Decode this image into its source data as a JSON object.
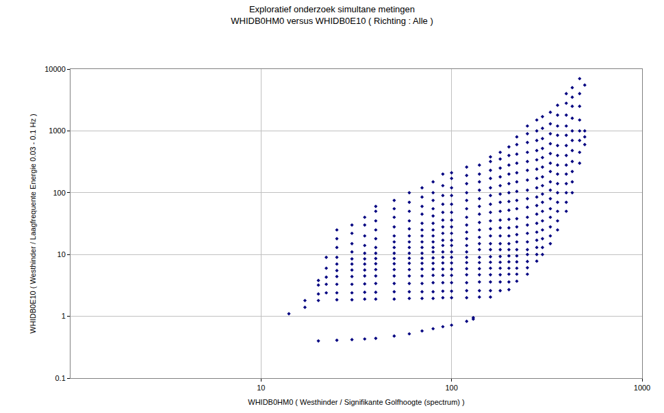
{
  "chart_data": {
    "type": "scatter",
    "title": "Exploratief onderzoek simultane metingen",
    "subtitle": "WHIDB0HM0 versus WHIDB0E10 ( Richting : Alle )",
    "x_label": "WHIDB0HM0 ( Westhinder / Signifikante Golfhoogte (spectrum) )",
    "y_label": "WHIDB0E10 ( Westhinder / Laagfrequente Energie 0.03 - 0.1 Hz )",
    "color": "#000080",
    "marker": "diamond",
    "log": true,
    "grid": true,
    "xlim": [
      1,
      1000
    ],
    "ylim": [
      0.1,
      10000
    ],
    "xticks": [
      10,
      100,
      1000
    ],
    "yticks": [
      0.1,
      1,
      10,
      100,
      1000,
      10000
    ],
    "x": [
      14,
      17,
      17,
      20,
      20,
      20,
      20,
      20,
      22,
      22,
      22,
      22,
      22,
      25,
      25,
      25,
      25,
      25,
      25,
      25,
      25,
      25,
      25,
      25,
      30,
      30,
      30,
      30,
      30,
      30,
      30,
      30,
      30,
      30,
      30,
      30,
      35,
      35,
      35,
      35,
      35,
      35,
      35,
      35,
      35,
      35,
      35,
      35,
      35,
      40,
      40,
      40,
      40,
      40,
      40,
      40,
      40,
      40,
      40,
      40,
      40,
      40,
      40,
      40,
      50,
      50,
      50,
      50,
      50,
      50,
      50,
      50,
      50,
      50,
      50,
      50,
      50,
      50,
      50,
      50,
      60,
      60,
      60,
      60,
      60,
      60,
      60,
      60,
      60,
      60,
      60,
      60,
      60,
      60,
      60,
      60,
      60,
      70,
      70,
      70,
      70,
      70,
      70,
      70,
      70,
      70,
      70,
      70,
      70,
      70,
      70,
      70,
      70,
      70,
      70,
      80,
      80,
      80,
      80,
      80,
      80,
      80,
      80,
      80,
      80,
      80,
      80,
      80,
      80,
      80,
      80,
      80,
      80,
      80,
      90,
      90,
      90,
      90,
      90,
      90,
      90,
      90,
      90,
      90,
      90,
      90,
      90,
      90,
      90,
      90,
      90,
      90,
      90,
      100,
      100,
      100,
      100,
      100,
      100,
      100,
      100,
      100,
      100,
      100,
      100,
      100,
      100,
      100,
      100,
      100,
      100,
      100,
      100,
      120,
      120,
      120,
      120,
      120,
      120,
      120,
      120,
      120,
      120,
      120,
      120,
      120,
      120,
      120,
      120,
      120,
      120,
      120,
      120,
      130,
      130,
      140,
      140,
      140,
      140,
      140,
      140,
      140,
      140,
      140,
      140,
      140,
      140,
      140,
      140,
      140,
      140,
      140,
      140,
      140,
      160,
      160,
      160,
      160,
      160,
      160,
      160,
      160,
      160,
      160,
      160,
      160,
      160,
      160,
      160,
      160,
      160,
      160,
      160,
      160,
      180,
      180,
      180,
      180,
      180,
      180,
      180,
      180,
      180,
      180,
      180,
      180,
      180,
      180,
      180,
      180,
      180,
      180,
      180,
      200,
      200,
      200,
      200,
      200,
      200,
      200,
      200,
      200,
      200,
      200,
      200,
      200,
      200,
      200,
      200,
      200,
      200,
      200,
      220,
      220,
      220,
      220,
      220,
      220,
      220,
      220,
      220,
      220,
      220,
      220,
      220,
      220,
      220,
      220,
      220,
      220,
      220,
      250,
      250,
      250,
      250,
      250,
      250,
      250,
      250,
      250,
      250,
      250,
      250,
      250,
      250,
      250,
      250,
      250,
      250,
      250,
      280,
      280,
      280,
      280,
      280,
      280,
      280,
      280,
      280,
      280,
      280,
      280,
      280,
      280,
      280,
      280,
      280,
      300,
      300,
      300,
      300,
      300,
      300,
      300,
      300,
      300,
      300,
      300,
      300,
      300,
      300,
      300,
      300,
      330,
      330,
      330,
      330,
      330,
      330,
      330,
      330,
      330,
      330,
      330,
      330,
      330,
      330,
      330,
      360,
      360,
      360,
      360,
      360,
      360,
      360,
      360,
      360,
      360,
      360,
      360,
      360,
      360,
      400,
      400,
      400,
      400,
      400,
      400,
      400,
      400,
      400,
      400,
      400,
      400,
      400,
      430,
      430,
      430,
      430,
      430,
      430,
      430,
      430,
      430,
      430,
      430,
      470,
      470,
      470,
      470,
      470,
      470,
      470,
      470,
      500,
      500,
      500,
      500
    ],
    "values": [
      1.1,
      1.4,
      1.8,
      0.4,
      1.8,
      2.3,
      3.2,
      3.8,
      2.4,
      3.3,
      4.3,
      6,
      9,
      0.41,
      1.85,
      2.4,
      3.3,
      4.4,
      5.5,
      7,
      9,
      13,
      18,
      25,
      0.42,
      1.85,
      2.4,
      3.3,
      4.4,
      5.6,
      7,
      8.5,
      11,
      15,
      22,
      30,
      0.43,
      1.9,
      2.45,
      3.35,
      4.5,
      5.6,
      7,
      8.5,
      10.5,
      14,
      20,
      30,
      40,
      0.44,
      1.9,
      2.45,
      3.4,
      4.5,
      5.7,
      7.1,
      8.6,
      10.5,
      13,
      18,
      25,
      35,
      50,
      60,
      0.48,
      1.9,
      2.5,
      3.4,
      4.5,
      5.7,
      7.1,
      8.6,
      10.5,
      13,
      16,
      20,
      28,
      40,
      55,
      75,
      0.52,
      1.95,
      2.5,
      3.4,
      4.5,
      5.7,
      7.2,
      8.7,
      10.5,
      13,
      16,
      20,
      26,
      35,
      50,
      70,
      100,
      0.58,
      1.95,
      2.5,
      3.4,
      4.5,
      5.8,
      7.2,
      8.7,
      10.5,
      13,
      16,
      20,
      25,
      32,
      45,
      60,
      85,
      120,
      0.63,
      1.95,
      2.5,
      3.5,
      4.6,
      5.8,
      7.2,
      8.8,
      11,
      13,
      16,
      20,
      25,
      32,
      42,
      55,
      75,
      100,
      150,
      0.68,
      2,
      2.55,
      3.5,
      4.6,
      5.8,
      7.3,
      9,
      11,
      14,
      17,
      22,
      28,
      36,
      48,
      65,
      90,
      130,
      200,
      0.72,
      2,
      2.55,
      3.5,
      4.6,
      5.8,
      7.3,
      9,
      11,
      14,
      17,
      22,
      28,
      36,
      48,
      65,
      90,
      120,
      170,
      210,
      0.83,
      2,
      2.6,
      3.5,
      4.7,
      5.9,
      7.4,
      9,
      11,
      14,
      18,
      23,
      30,
      40,
      55,
      75,
      100,
      140,
      190,
      260,
      0.9,
      0.95,
      2.05,
      2.6,
      3.6,
      4.7,
      5.9,
      7.4,
      9,
      12,
      15,
      19,
      25,
      33,
      45,
      60,
      80,
      110,
      150,
      200,
      280,
      2.05,
      2.6,
      3.6,
      4.7,
      6,
      7.5,
      9.2,
      12,
      15,
      20,
      26,
      35,
      48,
      65,
      90,
      120,
      170,
      230,
      320,
      380,
      2.6,
      3.6,
      4.7,
      6,
      7.5,
      9.3,
      12,
      15,
      20,
      27,
      36,
      50,
      70,
      95,
      130,
      180,
      250,
      350,
      450,
      2.7,
      3.6,
      4.8,
      6,
      7.6,
      9.5,
      12,
      15,
      20,
      27,
      37,
      52,
      72,
      100,
      140,
      200,
      280,
      400,
      550,
      3.7,
      4.8,
      6,
      7.6,
      9.5,
      12,
      16,
      21,
      28,
      38,
      55,
      75,
      105,
      150,
      210,
      300,
      420,
      600,
      800,
      4.8,
      6.1,
      7.7,
      10,
      12,
      16,
      22,
      30,
      40,
      58,
      80,
      110,
      160,
      230,
      320,
      450,
      650,
      900,
      1200,
      7.8,
      10,
      13,
      17,
      23,
      32,
      45,
      62,
      85,
      120,
      170,
      240,
      340,
      480,
      700,
      1000,
      1500,
      10,
      13,
      18,
      25,
      35,
      50,
      70,
      95,
      130,
      180,
      260,
      370,
      520,
      750,
      1100,
      1700,
      15,
      20,
      28,
      40,
      55,
      80,
      110,
      150,
      220,
      300,
      430,
      620,
      900,
      1300,
      2000,
      25,
      35,
      50,
      70,
      100,
      140,
      200,
      280,
      400,
      580,
      850,
      1200,
      1800,
      2600,
      50,
      70,
      100,
      140,
      200,
      280,
      400,
      580,
      850,
      1200,
      1800,
      2800,
      4000,
      100,
      150,
      220,
      320,
      480,
      700,
      1000,
      1600,
      2500,
      3500,
      5000,
      300,
      450,
      700,
      1000,
      1500,
      2500,
      4000,
      7000,
      600,
      800,
      1000,
      5500
    ]
  }
}
